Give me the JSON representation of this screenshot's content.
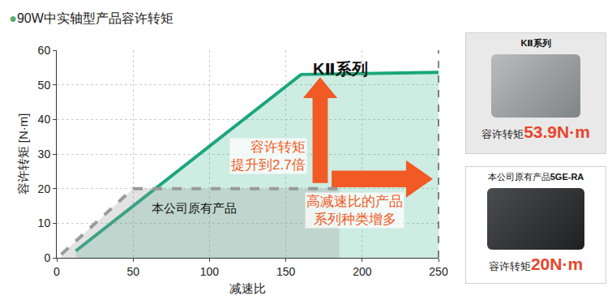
{
  "chart_data": {
    "type": "line",
    "title": "●90W中实轴型产品容许转矩",
    "x_label": "减速比",
    "y_label": "容许转矩 [N·m]",
    "xlim": [
      0,
      250
    ],
    "xticks": [
      0,
      50,
      100,
      150,
      200,
      250
    ],
    "ylim": [
      0,
      60
    ],
    "yticks": [
      0,
      10,
      20,
      30,
      40,
      50,
      60
    ],
    "grid": true,
    "series": [
      {
        "name": "KⅡ系列",
        "color": "#1aa77a",
        "line_style": "solid",
        "x": [
          12.5,
          160,
          250
        ],
        "values": [
          2,
          53,
          53.6
        ]
      },
      {
        "name": "本公司原有产品",
        "color": "#9a9a9a",
        "line_style": "dashed",
        "x": [
          3,
          50,
          185
        ],
        "values": [
          1,
          20,
          20
        ]
      }
    ],
    "annotations": [
      {
        "lines": [
          "容许转矩",
          "提升到2.7倍"
        ],
        "color": "#f15a24"
      },
      {
        "lines": [
          "高减速比的产品",
          "系列种类增多"
        ],
        "color": "#f15a24"
      }
    ],
    "products": [
      {
        "label": "KⅡ系列",
        "torque_label": "容许转矩",
        "torque": "53.9N·m"
      },
      {
        "label": "本公司原有产品",
        "model": "5GE-RA",
        "torque_label": "容许转矩",
        "torque": "20N·m"
      }
    ]
  }
}
